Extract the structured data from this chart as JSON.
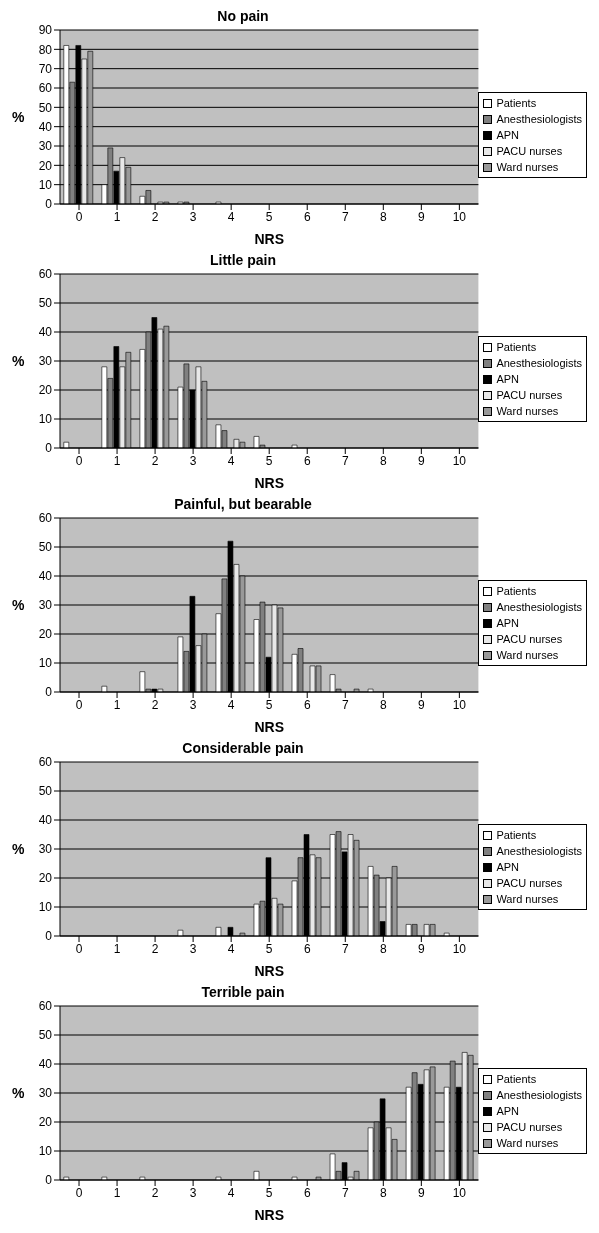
{
  "chart_data": [
    {
      "type": "bar",
      "title": "No pain",
      "xlabel": "NRS",
      "ylabel": "%",
      "categories": [
        "0",
        "1",
        "2",
        "3",
        "4",
        "5",
        "6",
        "7",
        "8",
        "9",
        "10"
      ],
      "ylim": [
        0,
        90
      ],
      "yticks": [
        0,
        10,
        20,
        30,
        40,
        50,
        60,
        70,
        80,
        90
      ],
      "grid": "y",
      "legend": "right",
      "series": [
        {
          "name": "Patients",
          "color": "#ffffff",
          "values": [
            82,
            10,
            4,
            1,
            1,
            null,
            null,
            null,
            null,
            null,
            null
          ]
        },
        {
          "name": "Anesthesiologists",
          "color": "#808080",
          "values": [
            63,
            29,
            7,
            1,
            null,
            null,
            null,
            null,
            null,
            null,
            null
          ]
        },
        {
          "name": "APN",
          "color": "#000000",
          "values": [
            82,
            17,
            null,
            null,
            null,
            null,
            null,
            null,
            null,
            null,
            null
          ]
        },
        {
          "name": "PACU nurses",
          "color": "#e8e8e8",
          "values": [
            75,
            24,
            1,
            null,
            null,
            null,
            null,
            null,
            null,
            null,
            null
          ]
        },
        {
          "name": "Ward nurses",
          "color": "#999999",
          "values": [
            79,
            19,
            1,
            null,
            null,
            null,
            null,
            null,
            null,
            null,
            null
          ]
        }
      ]
    },
    {
      "type": "bar",
      "title": "Little pain",
      "xlabel": "NRS",
      "ylabel": "%",
      "categories": [
        "0",
        "1",
        "2",
        "3",
        "4",
        "5",
        "6",
        "7",
        "8",
        "9",
        "10"
      ],
      "ylim": [
        0,
        60
      ],
      "yticks": [
        0,
        10,
        20,
        30,
        40,
        50,
        60
      ],
      "grid": "y",
      "legend": "right",
      "series": [
        {
          "name": "Patients",
          "color": "#ffffff",
          "values": [
            2,
            28,
            34,
            21,
            8,
            4,
            1,
            null,
            null,
            null,
            null
          ]
        },
        {
          "name": "Anesthesiologists",
          "color": "#808080",
          "values": [
            null,
            24,
            40,
            29,
            6,
            1,
            null,
            null,
            null,
            null,
            null
          ]
        },
        {
          "name": "APN",
          "color": "#000000",
          "values": [
            null,
            35,
            45,
            20,
            null,
            null,
            null,
            null,
            null,
            null,
            null
          ]
        },
        {
          "name": "PACU nurses",
          "color": "#e8e8e8",
          "values": [
            null,
            28,
            41,
            28,
            3,
            null,
            null,
            null,
            null,
            null,
            null
          ]
        },
        {
          "name": "Ward nurses",
          "color": "#999999",
          "values": [
            null,
            33,
            42,
            23,
            2,
            null,
            null,
            null,
            null,
            null,
            null
          ]
        }
      ]
    },
    {
      "type": "bar",
      "title": "Painful, but bearable",
      "xlabel": "NRS",
      "ylabel": "%",
      "categories": [
        "0",
        "1",
        "2",
        "3",
        "4",
        "5",
        "6",
        "7",
        "8",
        "9",
        "10"
      ],
      "ylim": [
        0,
        60
      ],
      "yticks": [
        0,
        10,
        20,
        30,
        40,
        50,
        60
      ],
      "grid": "y",
      "legend": "right",
      "series": [
        {
          "name": "Patients",
          "color": "#ffffff",
          "values": [
            null,
            2,
            7,
            19,
            27,
            25,
            13,
            6,
            1,
            null,
            null
          ]
        },
        {
          "name": "Anesthesiologists",
          "color": "#808080",
          "values": [
            null,
            null,
            1,
            14,
            39,
            31,
            15,
            1,
            null,
            null,
            null
          ]
        },
        {
          "name": "APN",
          "color": "#000000",
          "values": [
            null,
            null,
            1,
            33,
            52,
            12,
            null,
            null,
            null,
            null,
            null
          ]
        },
        {
          "name": "PACU nurses",
          "color": "#e8e8e8",
          "values": [
            null,
            null,
            1,
            16,
            44,
            30,
            9,
            null,
            null,
            null,
            null
          ]
        },
        {
          "name": "Ward nurses",
          "color": "#999999",
          "values": [
            null,
            null,
            null,
            20,
            40,
            29,
            9,
            1,
            null,
            null,
            null
          ]
        }
      ]
    },
    {
      "type": "bar",
      "title": "Considerable pain",
      "xlabel": "NRS",
      "ylabel": "%",
      "categories": [
        "0",
        "1",
        "2",
        "3",
        "4",
        "5",
        "6",
        "7",
        "8",
        "9",
        "10"
      ],
      "ylim": [
        0,
        60
      ],
      "yticks": [
        0,
        10,
        20,
        30,
        40,
        50,
        60
      ],
      "grid": "y",
      "legend": "right",
      "series": [
        {
          "name": "Patients",
          "color": "#ffffff",
          "values": [
            null,
            null,
            null,
            2,
            3,
            11,
            19,
            35,
            24,
            4,
            1
          ]
        },
        {
          "name": "Anesthesiologists",
          "color": "#808080",
          "values": [
            null,
            null,
            null,
            null,
            null,
            12,
            27,
            36,
            21,
            4,
            null
          ]
        },
        {
          "name": "APN",
          "color": "#000000",
          "values": [
            null,
            null,
            null,
            null,
            3,
            27,
            35,
            29,
            5,
            null,
            null
          ]
        },
        {
          "name": "PACU nurses",
          "color": "#e8e8e8",
          "values": [
            null,
            null,
            null,
            null,
            null,
            13,
            28,
            35,
            20,
            4,
            null
          ]
        },
        {
          "name": "Ward nurses",
          "color": "#999999",
          "values": [
            null,
            null,
            null,
            null,
            1,
            11,
            27,
            33,
            24,
            4,
            null
          ]
        }
      ]
    },
    {
      "type": "bar",
      "title": "Terrible pain",
      "xlabel": "NRS",
      "ylabel": "%",
      "categories": [
        "0",
        "1",
        "2",
        "3",
        "4",
        "5",
        "6",
        "7",
        "8",
        "9",
        "10"
      ],
      "ylim": [
        0,
        60
      ],
      "yticks": [
        0,
        10,
        20,
        30,
        40,
        50,
        60
      ],
      "grid": "y",
      "legend": "right",
      "series": [
        {
          "name": "Patients",
          "color": "#ffffff",
          "values": [
            1,
            1,
            1,
            null,
            1,
            3,
            1,
            9,
            18,
            32,
            32
          ]
        },
        {
          "name": "Anesthesiologists",
          "color": "#808080",
          "values": [
            null,
            null,
            null,
            null,
            null,
            null,
            null,
            3,
            20,
            37,
            41
          ]
        },
        {
          "name": "APN",
          "color": "#000000",
          "values": [
            null,
            null,
            null,
            null,
            null,
            null,
            null,
            6,
            28,
            33,
            32
          ]
        },
        {
          "name": "PACU nurses",
          "color": "#e8e8e8",
          "values": [
            null,
            null,
            null,
            null,
            null,
            null,
            null,
            1,
            18,
            38,
            44
          ]
        },
        {
          "name": "Ward nurses",
          "color": "#999999",
          "values": [
            null,
            null,
            null,
            null,
            null,
            null,
            1,
            3,
            14,
            39,
            43
          ]
        }
      ]
    }
  ]
}
